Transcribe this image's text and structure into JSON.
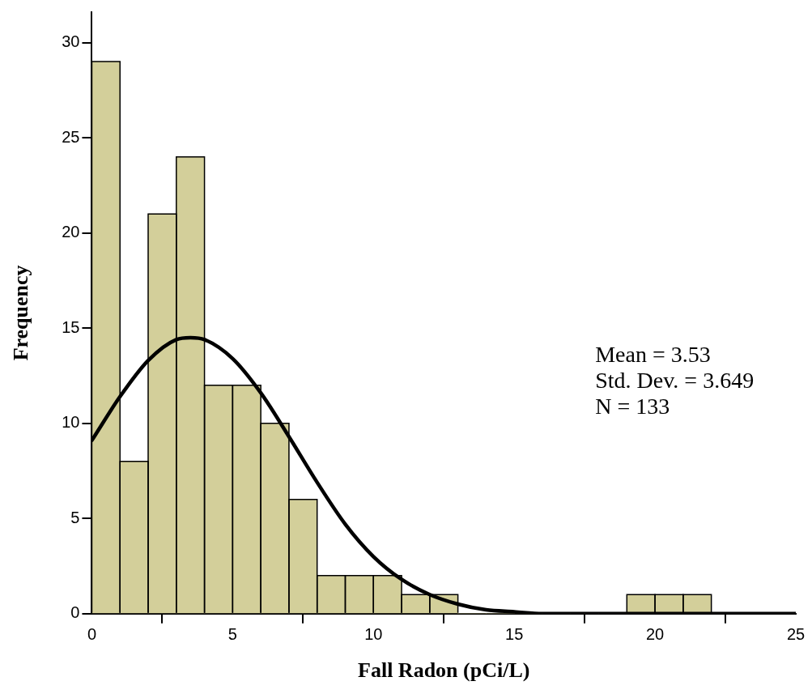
{
  "chart_data": {
    "type": "histogram",
    "xlabel": "Fall Radon (pCi/L)",
    "ylabel": "Frequency",
    "bins": [
      0,
      1,
      2,
      3,
      4,
      5,
      6,
      7,
      8,
      9,
      10,
      11,
      12,
      13,
      14,
      15,
      16,
      17,
      18,
      19,
      20,
      21,
      22
    ],
    "series": [
      {
        "type": "histogram",
        "color": "#d3cf9a",
        "values": [
          29,
          8,
          21,
          24,
          12,
          12,
          10,
          6,
          2,
          2,
          2,
          1,
          1,
          0,
          0,
          0,
          0,
          0,
          0,
          1,
          1,
          1
        ]
      },
      {
        "type": "line",
        "color": "#000000",
        "x": [
          0,
          1,
          2,
          3,
          3.5,
          4,
          5,
          6,
          7,
          8,
          9,
          10,
          11,
          12,
          13,
          14,
          15,
          16,
          18,
          20,
          25
        ],
        "values": [
          9.1,
          11.4,
          13.3,
          14.4,
          14.5,
          14.4,
          13.4,
          11.6,
          9.3,
          6.9,
          4.7,
          3.0,
          1.8,
          1.0,
          0.5,
          0.2,
          0.1,
          0.0,
          0.0,
          0.0,
          0.0
        ]
      }
    ],
    "xlim": [
      0,
      25
    ],
    "xticks": [
      0,
      5,
      10,
      15,
      20,
      25
    ],
    "ylim": [
      0,
      31.6
    ],
    "yticks": [
      0,
      5,
      10,
      15,
      20,
      25,
      30
    ],
    "marker": "none",
    "annotations": [
      "Mean = 3.53",
      "Std. Dev. = 3.649",
      "N = 133"
    ]
  }
}
